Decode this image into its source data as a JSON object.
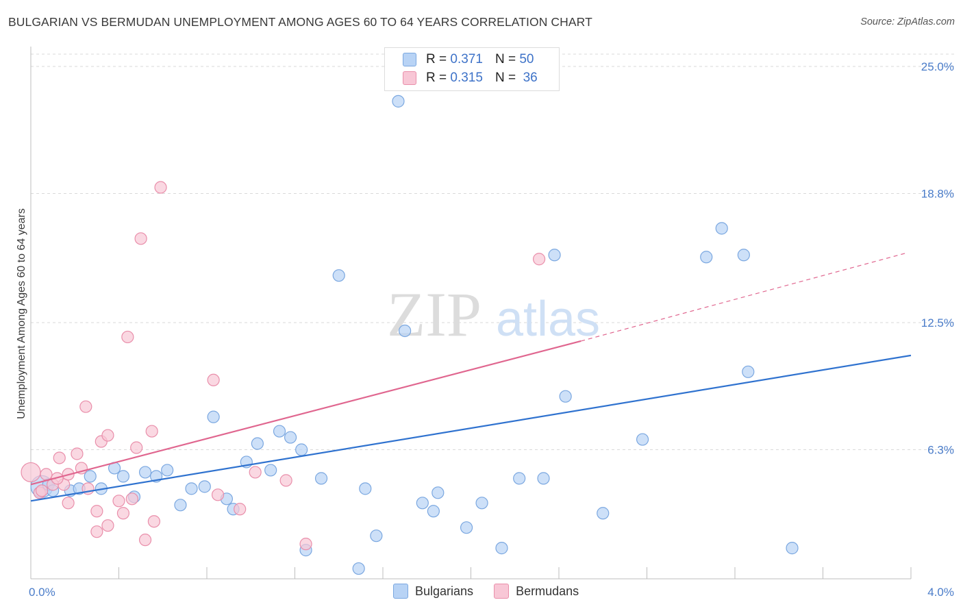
{
  "title": "BULGARIAN VS BERMUDAN UNEMPLOYMENT AMONG AGES 60 TO 64 YEARS CORRELATION CHART",
  "source": "Source: ZipAtlas.com",
  "watermark": {
    "zip": "ZIP",
    "atlas": "atlas"
  },
  "legend": {
    "r_label": "R =",
    "n_label": "N =",
    "rows": [
      {
        "r": "0.371",
        "n": "50"
      },
      {
        "r": "0.315",
        "n": "36"
      }
    ]
  },
  "colors": {
    "blue_fill": "#b8d3f5",
    "blue_stroke": "#7aa7e0",
    "blue_line": "#2f72cf",
    "pink_fill": "#f8c7d6",
    "pink_stroke": "#e98eaa",
    "pink_line": "#e0668f",
    "grid": "#d9d9d9",
    "tick_text": "#4a7cc9"
  },
  "chart_data": {
    "type": "scatter",
    "title": "BULGARIAN VS BERMUDAN UNEMPLOYMENT AMONG AGES 60 TO 64 YEARS CORRELATION CHART",
    "xlabel": "",
    "ylabel": "Unemployment Among Ages 60 to 64 years",
    "xlim": [
      0,
      4.0
    ],
    "ylim": [
      0,
      25.0
    ],
    "x_tick_labels": [
      "0.0%",
      "4.0%"
    ],
    "y_ticks": [
      6.3,
      12.5,
      18.8,
      25.0
    ],
    "y_tick_labels": [
      "6.3%",
      "12.5%",
      "18.8%",
      "25.0%"
    ],
    "series": [
      {
        "name": "Bulgarians",
        "r": 0.371,
        "n": 50,
        "trend": {
          "x0": 0.0,
          "y0": 3.8,
          "x1": 4.0,
          "y1": 10.9
        },
        "points": [
          [
            0.05,
            4.5
          ],
          [
            0.08,
            4.6
          ],
          [
            0.1,
            4.3
          ],
          [
            0.18,
            4.3
          ],
          [
            0.22,
            4.4
          ],
          [
            0.27,
            5.0
          ],
          [
            0.32,
            4.4
          ],
          [
            0.38,
            5.4
          ],
          [
            0.42,
            5.0
          ],
          [
            0.47,
            4.0
          ],
          [
            0.52,
            5.2
          ],
          [
            0.57,
            5.0
          ],
          [
            0.62,
            5.3
          ],
          [
            0.68,
            3.6
          ],
          [
            0.73,
            4.4
          ],
          [
            0.79,
            4.5
          ],
          [
            0.83,
            7.9
          ],
          [
            0.89,
            3.9
          ],
          [
            0.92,
            3.4
          ],
          [
            0.98,
            5.7
          ],
          [
            1.03,
            6.6
          ],
          [
            1.09,
            5.3
          ],
          [
            1.13,
            7.2
          ],
          [
            1.18,
            6.9
          ],
          [
            1.23,
            6.3
          ],
          [
            1.25,
            1.4
          ],
          [
            1.32,
            4.9
          ],
          [
            1.4,
            14.8
          ],
          [
            1.49,
            0.5
          ],
          [
            1.52,
            4.4
          ],
          [
            1.57,
            2.1
          ],
          [
            1.7,
            12.1
          ],
          [
            1.67,
            23.3
          ],
          [
            1.78,
            3.7
          ],
          [
            1.83,
            3.3
          ],
          [
            1.85,
            4.2
          ],
          [
            1.98,
            2.5
          ],
          [
            2.05,
            3.7
          ],
          [
            2.14,
            1.5
          ],
          [
            2.22,
            4.9
          ],
          [
            2.33,
            4.9
          ],
          [
            2.38,
            15.8
          ],
          [
            2.43,
            8.9
          ],
          [
            2.6,
            3.2
          ],
          [
            2.78,
            6.8
          ],
          [
            3.07,
            15.7
          ],
          [
            3.14,
            17.1
          ],
          [
            3.24,
            15.8
          ],
          [
            3.26,
            10.1
          ],
          [
            3.46,
            1.5
          ]
        ]
      },
      {
        "name": "Bermudans",
        "r": 0.315,
        "n": 36,
        "trend": {
          "x0": 0.0,
          "y0": 4.6,
          "x1": 2.5,
          "y1": 11.6
        },
        "trend_dashed": {
          "x0": 2.5,
          "y0": 11.6,
          "x1": 3.98,
          "y1": 15.9
        },
        "points": [
          [
            0.0,
            5.2
          ],
          [
            0.04,
            4.2
          ],
          [
            0.07,
            5.1
          ],
          [
            0.1,
            4.6
          ],
          [
            0.13,
            5.9
          ],
          [
            0.15,
            4.6
          ],
          [
            0.17,
            5.1
          ],
          [
            0.17,
            3.7
          ],
          [
            0.21,
            6.1
          ],
          [
            0.23,
            5.4
          ],
          [
            0.25,
            8.4
          ],
          [
            0.26,
            4.4
          ],
          [
            0.3,
            3.3
          ],
          [
            0.3,
            2.3
          ],
          [
            0.32,
            6.7
          ],
          [
            0.35,
            2.6
          ],
          [
            0.35,
            7.0
          ],
          [
            0.4,
            3.8
          ],
          [
            0.42,
            3.2
          ],
          [
            0.44,
            11.8
          ],
          [
            0.46,
            3.9
          ],
          [
            0.48,
            6.4
          ],
          [
            0.5,
            16.6
          ],
          [
            0.52,
            1.9
          ],
          [
            0.55,
            7.2
          ],
          [
            0.56,
            2.8
          ],
          [
            0.59,
            19.1
          ],
          [
            0.83,
            9.7
          ],
          [
            0.85,
            4.1
          ],
          [
            0.95,
            3.4
          ],
          [
            1.02,
            5.2
          ],
          [
            1.16,
            4.8
          ],
          [
            1.25,
            1.7
          ],
          [
            2.31,
            15.6
          ],
          [
            0.05,
            4.3
          ],
          [
            0.12,
            4.9
          ]
        ]
      }
    ]
  }
}
